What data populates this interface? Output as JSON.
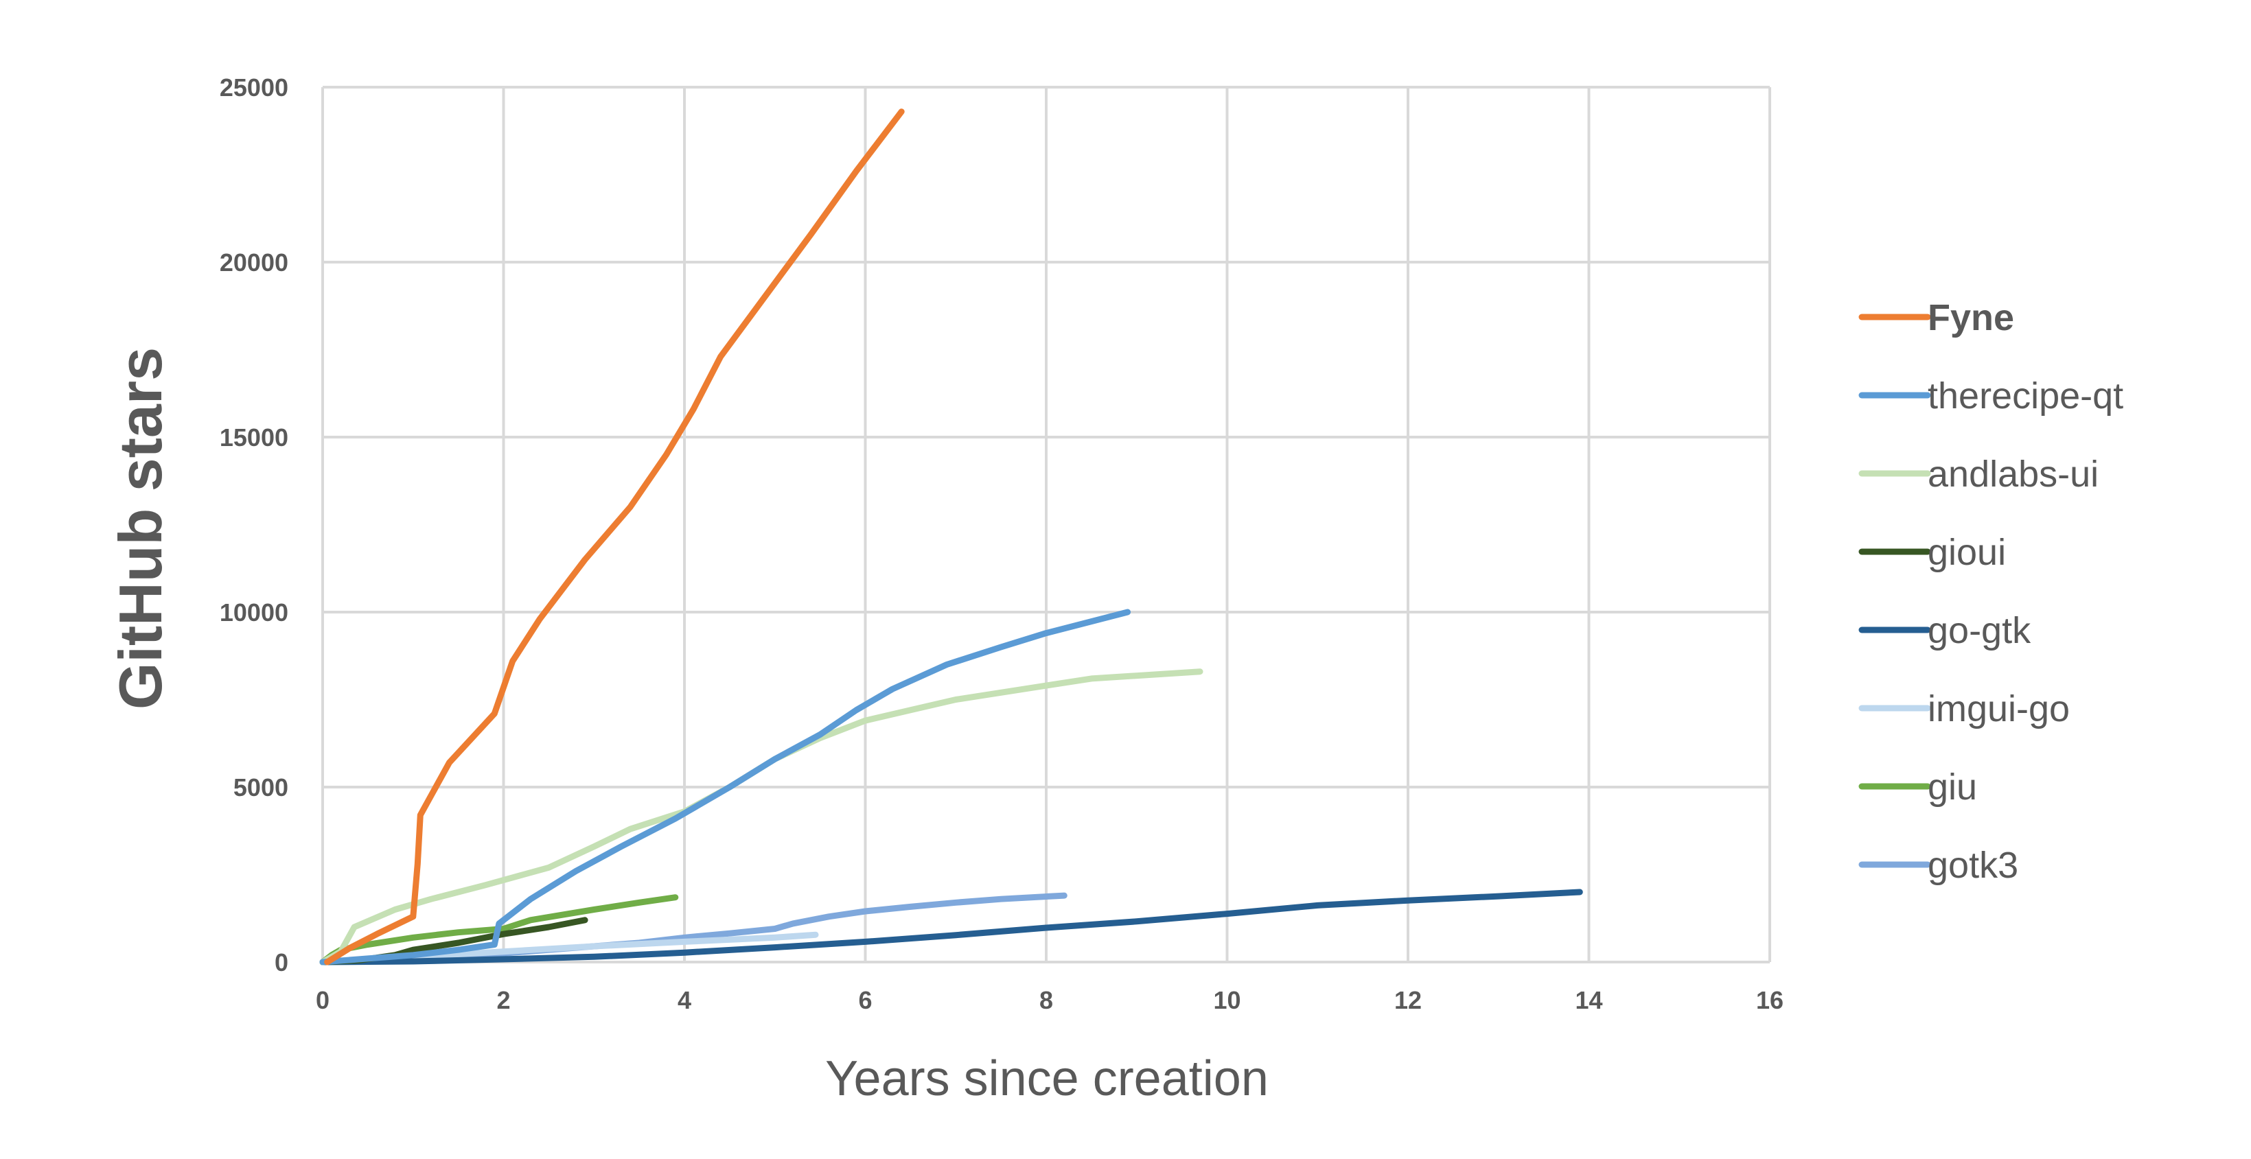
{
  "chart_data": {
    "type": "line",
    "title": "",
    "xlabel": "Years since creation",
    "ylabel": "GitHub stars",
    "xlim": [
      0,
      16
    ],
    "ylim": [
      0,
      25000
    ],
    "xticks": [
      "0",
      "2",
      "4",
      "6",
      "8",
      "10",
      "12",
      "14",
      "16"
    ],
    "yticks": [
      "0",
      "5000",
      "10000",
      "15000",
      "20000",
      "25000"
    ],
    "grid": true,
    "legend_position": "right",
    "series": [
      {
        "name": "Fyne",
        "color": "#ED7D31",
        "bold": true,
        "points": [
          [
            0.05,
            0
          ],
          [
            0.3,
            400
          ],
          [
            0.6,
            800
          ],
          [
            1.0,
            1300
          ],
          [
            1.05,
            2800
          ],
          [
            1.08,
            4200
          ],
          [
            1.4,
            5700
          ],
          [
            1.9,
            7100
          ],
          [
            2.1,
            8600
          ],
          [
            2.4,
            9800
          ],
          [
            2.9,
            11500
          ],
          [
            3.4,
            13000
          ],
          [
            3.8,
            14500
          ],
          [
            4.1,
            15800
          ],
          [
            4.4,
            17300
          ],
          [
            4.8,
            18700
          ],
          [
            5.4,
            20800
          ],
          [
            5.9,
            22600
          ],
          [
            6.4,
            24300
          ]
        ]
      },
      {
        "name": "therecipe-qt",
        "color": "#5B9BD5",
        "bold": false,
        "points": [
          [
            0.0,
            0
          ],
          [
            0.5,
            100
          ],
          [
            1.0,
            200
          ],
          [
            1.5,
            350
          ],
          [
            1.9,
            500
          ],
          [
            1.95,
            1100
          ],
          [
            2.3,
            1800
          ],
          [
            2.8,
            2600
          ],
          [
            3.3,
            3300
          ],
          [
            3.9,
            4100
          ],
          [
            4.5,
            5000
          ],
          [
            5.0,
            5800
          ],
          [
            5.5,
            6500
          ],
          [
            5.9,
            7200
          ],
          [
            6.3,
            7800
          ],
          [
            6.9,
            8500
          ],
          [
            7.5,
            9000
          ],
          [
            8.0,
            9400
          ],
          [
            8.9,
            10000
          ]
        ]
      },
      {
        "name": "andlabs-ui",
        "color": "#C5E0B4",
        "bold": false,
        "points": [
          [
            0.0,
            0
          ],
          [
            0.2,
            300
          ],
          [
            0.35,
            1000
          ],
          [
            0.8,
            1500
          ],
          [
            1.2,
            1800
          ],
          [
            1.8,
            2200
          ],
          [
            2.5,
            2700
          ],
          [
            3.0,
            3300
          ],
          [
            3.4,
            3800
          ],
          [
            4.0,
            4300
          ],
          [
            4.5,
            5000
          ],
          [
            5.0,
            5800
          ],
          [
            5.5,
            6400
          ],
          [
            6.0,
            6900
          ],
          [
            6.5,
            7200
          ],
          [
            7.0,
            7500
          ],
          [
            7.5,
            7700
          ],
          [
            8.0,
            7900
          ],
          [
            8.5,
            8100
          ],
          [
            9.7,
            8300
          ]
        ]
      },
      {
        "name": "gioui",
        "color": "#375623",
        "bold": false,
        "points": [
          [
            0.0,
            0
          ],
          [
            0.4,
            50
          ],
          [
            0.8,
            200
          ],
          [
            1.0,
            350
          ],
          [
            1.5,
            550
          ],
          [
            2.0,
            800
          ],
          [
            2.5,
            1000
          ],
          [
            2.9,
            1200
          ]
        ]
      },
      {
        "name": "go-gtk",
        "color": "#255E91",
        "bold": false,
        "points": [
          [
            0.0,
            0
          ],
          [
            1.0,
            20
          ],
          [
            2.0,
            80
          ],
          [
            3.0,
            150
          ],
          [
            4.0,
            270
          ],
          [
            5.0,
            420
          ],
          [
            6.0,
            580
          ],
          [
            7.0,
            770
          ],
          [
            8.0,
            980
          ],
          [
            9.0,
            1160
          ],
          [
            10.0,
            1380
          ],
          [
            11.0,
            1620
          ],
          [
            12.0,
            1760
          ],
          [
            13.0,
            1880
          ],
          [
            13.9,
            2000
          ]
        ]
      },
      {
        "name": "imgui-go",
        "color": "#BDD7EE",
        "bold": false,
        "points": [
          [
            0.0,
            0
          ],
          [
            0.5,
            80
          ],
          [
            1.0,
            150
          ],
          [
            2.0,
            300
          ],
          [
            3.0,
            450
          ],
          [
            4.0,
            580
          ],
          [
            4.6,
            650
          ],
          [
            5.0,
            700
          ],
          [
            5.45,
            780
          ]
        ]
      },
      {
        "name": "giu",
        "color": "#70AD47",
        "bold": false,
        "points": [
          [
            0.0,
            0
          ],
          [
            0.1,
            200
          ],
          [
            0.2,
            350
          ],
          [
            0.5,
            500
          ],
          [
            1.0,
            700
          ],
          [
            1.5,
            850
          ],
          [
            2.0,
            950
          ],
          [
            2.3,
            1200
          ],
          [
            3.0,
            1500
          ],
          [
            3.5,
            1700
          ],
          [
            3.9,
            1850
          ]
        ]
      },
      {
        "name": "gotk3",
        "color": "#7FA8DC",
        "bold": false,
        "points": [
          [
            0.0,
            0
          ],
          [
            1.0,
            100
          ],
          [
            2.0,
            250
          ],
          [
            3.0,
            450
          ],
          [
            3.5,
            550
          ],
          [
            4.0,
            700
          ],
          [
            4.5,
            820
          ],
          [
            5.0,
            950
          ],
          [
            5.2,
            1100
          ],
          [
            5.6,
            1300
          ],
          [
            6.0,
            1450
          ],
          [
            6.5,
            1580
          ],
          [
            7.0,
            1700
          ],
          [
            7.5,
            1800
          ],
          [
            8.2,
            1900
          ]
        ]
      }
    ]
  }
}
